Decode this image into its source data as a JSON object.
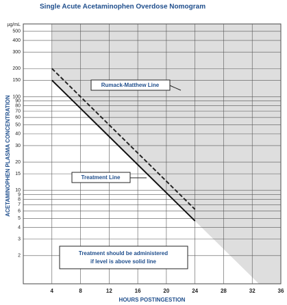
{
  "chart_data": {
    "type": "line",
    "title": "Single Acute Acetaminophen Overdose Nomogram",
    "xlabel": "HOURS POSTINGESTION",
    "ylabel": "ACETAMINOPHEN PLASMA CONCENTRATION",
    "y_unit": "µg/mL",
    "xlim": [
      0,
      36
    ],
    "xticks": [
      4,
      8,
      12,
      16,
      20,
      24,
      28,
      32,
      36
    ],
    "ylim": [
      1,
      600
    ],
    "log_y": true,
    "grid": true,
    "shade_color": "#dedede",
    "yticks": [
      500,
      400,
      300,
      200,
      150,
      100,
      90,
      80,
      70,
      60,
      50,
      40,
      30,
      20,
      15,
      10,
      9,
      8,
      7,
      6,
      5,
      4,
      3,
      2
    ],
    "series": [
      {
        "name": "Rumack-Matthew Line",
        "color": "#222222",
        "dashed": true,
        "x": [
          4,
          24
        ],
        "values": [
          200,
          6.25
        ]
      },
      {
        "name": "Treatment Line",
        "color": "#111111",
        "dashed": false,
        "x": [
          4,
          24
        ],
        "values": [
          150,
          4.7
        ]
      }
    ],
    "annotation": [
      "Treatment should be administered",
      "if level is above solid line"
    ]
  }
}
